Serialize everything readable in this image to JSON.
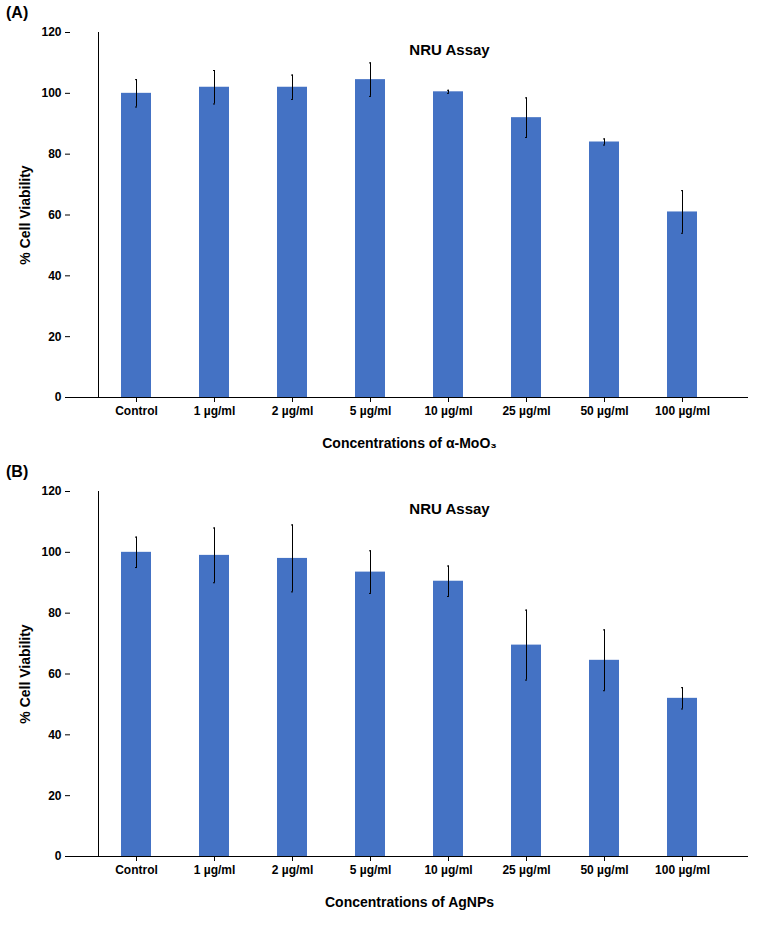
{
  "chart_data": [
    {
      "type": "bar",
      "annotation": "(A)",
      "title": "NRU Assay",
      "x_label": "Concentrations of α-MoO₃",
      "y_label": "% Cell Viability",
      "categories": [
        "Control",
        "1 µg/ml",
        "2 µg/ml",
        "5 µg/ml",
        "10 µg/ml",
        "25 µg/ml",
        "50 µg/ml",
        "100 µg/ml"
      ],
      "values": [
        100,
        102,
        102,
        104.5,
        100.5,
        92,
        84,
        61
      ],
      "errors": [
        4.5,
        5.5,
        4,
        5.5,
        0.5,
        6.5,
        1,
        7
      ],
      "color": "#4472c4",
      "ylim": [
        0,
        120
      ],
      "yticks": [
        0,
        20,
        40,
        60,
        80,
        100,
        120
      ],
      "grid": false
    },
    {
      "type": "bar",
      "annotation": "(B)",
      "title": "NRU Assay",
      "x_label": "Concentrations of AgNPs",
      "y_label": "% Cell Viability",
      "categories": [
        "Control",
        "1 µg/ml",
        "2 µg/ml",
        "5 µg/ml",
        "10 µg/ml",
        "25 µg/ml",
        "50 µg/ml",
        "100 µg/ml"
      ],
      "values": [
        100,
        99,
        98,
        93.5,
        90.5,
        69.5,
        64.5,
        52
      ],
      "errors": [
        5,
        9,
        11,
        7,
        5,
        11.5,
        10,
        3.5
      ],
      "color": "#4472c4",
      "ylim": [
        0,
        120
      ],
      "yticks": [
        0,
        20,
        40,
        60,
        80,
        100,
        120
      ],
      "grid": false
    }
  ]
}
